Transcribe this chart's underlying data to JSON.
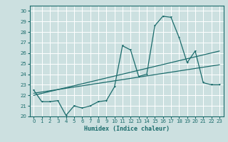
{
  "xlabel": "Humidex (Indice chaleur)",
  "bg_color": "#cce0e0",
  "grid_color": "#ffffff",
  "line_color": "#1a6b6b",
  "xlim": [
    -0.5,
    23.5
  ],
  "ylim": [
    20.0,
    30.5
  ],
  "yticks": [
    20,
    21,
    22,
    23,
    24,
    25,
    26,
    27,
    28,
    29,
    30
  ],
  "xticks": [
    0,
    1,
    2,
    3,
    4,
    5,
    6,
    7,
    8,
    9,
    10,
    11,
    12,
    13,
    14,
    15,
    16,
    17,
    18,
    19,
    20,
    21,
    22,
    23
  ],
  "line1_x": [
    0,
    1,
    2,
    3,
    4,
    5,
    6,
    7,
    8,
    9,
    10,
    11,
    12,
    13,
    14,
    15,
    16,
    17,
    18,
    19,
    20,
    21,
    22,
    23
  ],
  "line1_y": [
    22.5,
    21.4,
    21.4,
    21.5,
    20.1,
    21.0,
    20.8,
    21.0,
    21.4,
    21.5,
    22.8,
    26.7,
    26.3,
    23.8,
    24.0,
    28.6,
    29.5,
    29.4,
    27.5,
    25.1,
    26.2,
    23.2,
    23.0,
    23.0
  ],
  "line2_x": [
    0,
    23
  ],
  "line2_y": [
    22.0,
    26.2
  ],
  "line3_x": [
    0,
    23
  ],
  "line3_y": [
    22.2,
    24.9
  ]
}
